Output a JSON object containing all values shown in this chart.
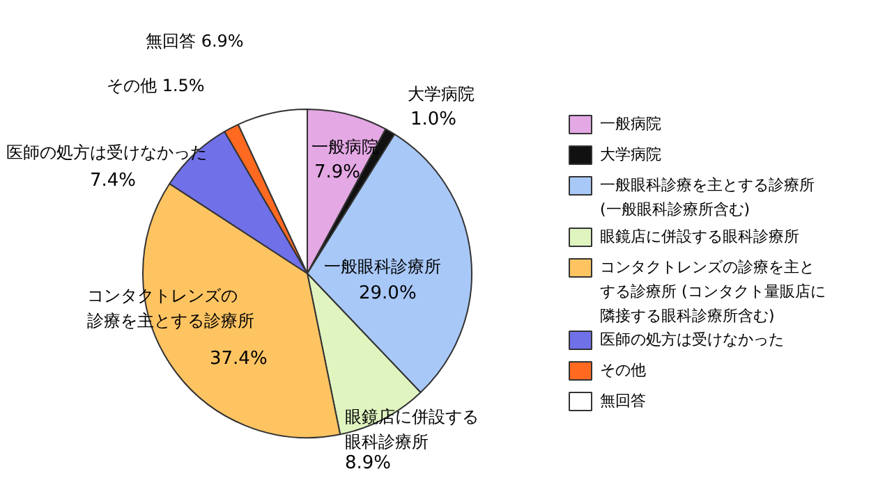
{
  "chart_data": {
    "type": "pie",
    "categories": [
      "一般病院",
      "大学病院",
      "一般眼科診療を主とする診療所(一般眼科診療所含む)",
      "眼鏡店に併設する眼科診療所",
      "コンタクトレンズの診療を主とする診療所 (コンタクト量販店に隣接する眼科診療所含む)",
      "医師の処方は受けなかった",
      "その他",
      "無回答"
    ],
    "values": [
      7.9,
      1.0,
      29.0,
      8.9,
      37.4,
      7.4,
      1.5,
      6.9
    ],
    "colors": [
      "#e4a8e4",
      "#111111",
      "#a8c8f8",
      "#e0f4c0",
      "#ffc462",
      "#7070e8",
      "#ff6a20",
      "#ffffff"
    ],
    "value_labels": [
      "7.9%",
      "1.0%",
      "29.0%",
      "8.9%",
      "37.4%",
      "7.4%",
      "1.5%",
      "6.9%"
    ],
    "annotations": [
      "一般病院",
      "大学病院",
      "一般眼科診療所",
      "眼鏡店に併設する眼科診療所",
      "コンタクトレンズの診療を主とする診療所",
      "医師の処方は受けなかった",
      "その他",
      "無回答"
    ],
    "legend": "right"
  }
}
